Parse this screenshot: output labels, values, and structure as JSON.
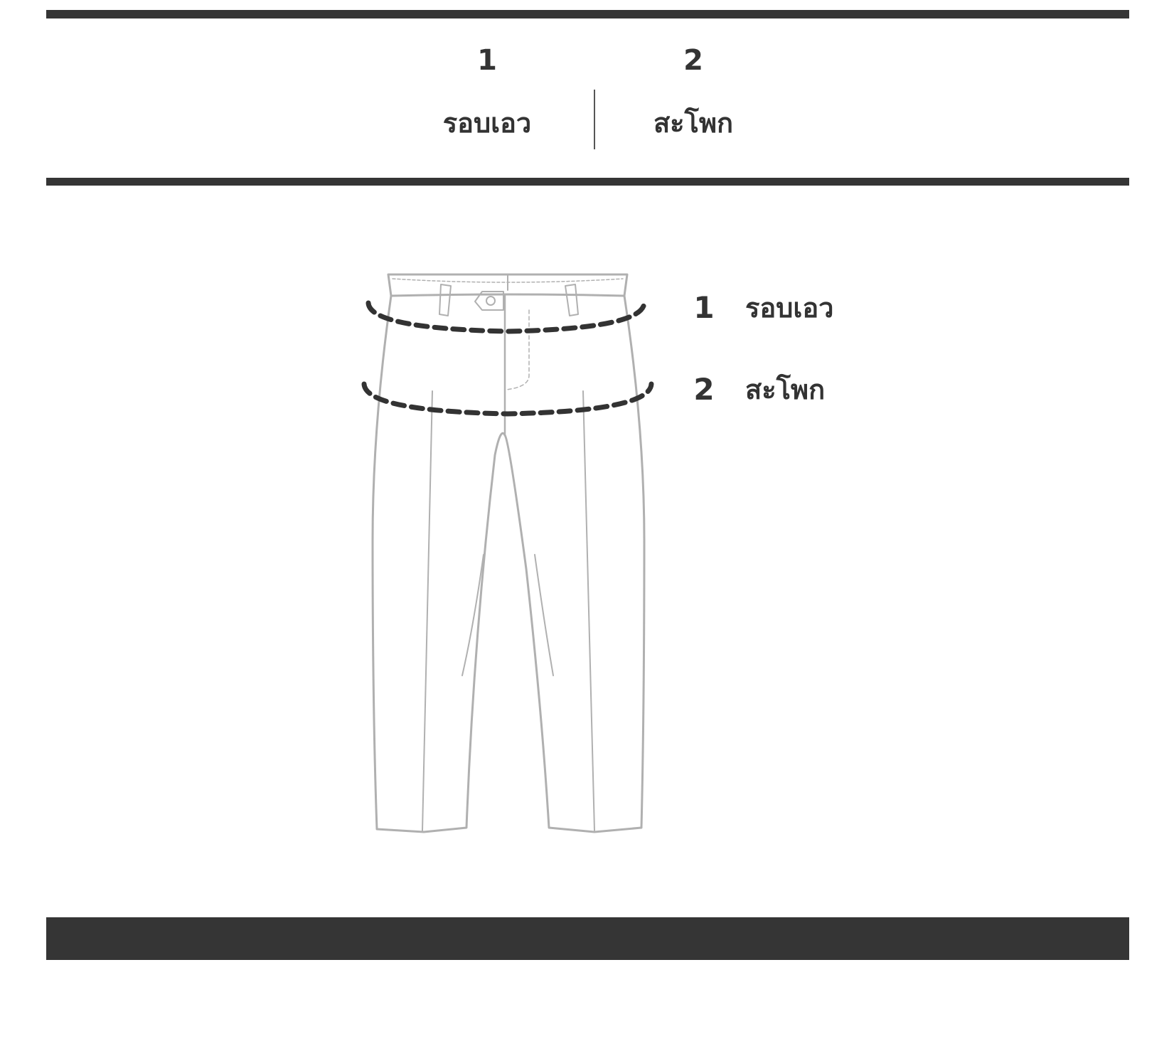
{
  "columns": [
    {
      "number": "1",
      "label": "รอบเอว"
    },
    {
      "number": "2",
      "label": "สะโพก"
    }
  ],
  "legend": [
    {
      "number": "1",
      "label": "รอบเอว"
    },
    {
      "number": "2",
      "label": "สะโพก"
    }
  ],
  "colors": {
    "bar": "#353535",
    "text": "#333333",
    "outline": "#b0b0b0",
    "dash": "#333333"
  },
  "icons": {
    "garment": "trousers-icon",
    "measure_lines": "dashed-measurement-loop"
  }
}
